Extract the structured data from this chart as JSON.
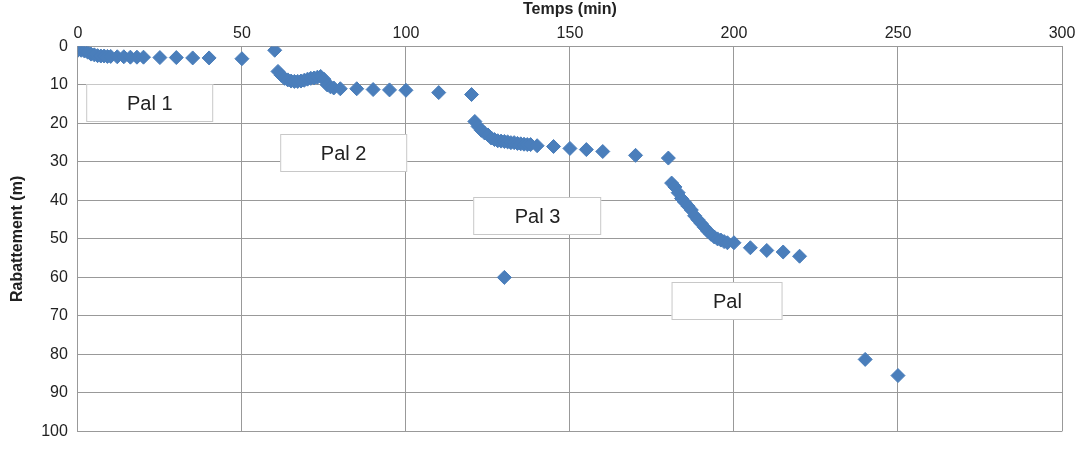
{
  "chart_data": {
    "type": "scatter",
    "xlabel": "Temps (min)",
    "ylabel": "Rabattement (m)",
    "marker": "diamond",
    "grid": true,
    "legend": false,
    "xlim": [
      0,
      300
    ],
    "xticks": [
      0,
      50,
      100,
      150,
      200,
      250,
      300
    ],
    "ylim": [
      100,
      0
    ],
    "yticks": [
      0,
      10,
      20,
      30,
      40,
      50,
      60,
      70,
      80,
      90,
      100
    ],
    "x": [
      0,
      1,
      2,
      3,
      4,
      5,
      6,
      7,
      8,
      9,
      10,
      12,
      14,
      16,
      18,
      20,
      25,
      30,
      35,
      40,
      50,
      60,
      61,
      62,
      63,
      64,
      65,
      66,
      67,
      68,
      69,
      70,
      71,
      72,
      73,
      74,
      75,
      76,
      77,
      78,
      80,
      85,
      90,
      95,
      100,
      110,
      120,
      121,
      122,
      123,
      124,
      125,
      126,
      127,
      128,
      129,
      130,
      131,
      132,
      133,
      134,
      135,
      136,
      137,
      138,
      140,
      145,
      150,
      155,
      160,
      170,
      180,
      130,
      181,
      182,
      183,
      184,
      185,
      186,
      187,
      188,
      189,
      190,
      191,
      192,
      193,
      194,
      195,
      196,
      197,
      198,
      200,
      205,
      210,
      215,
      220,
      240,
      250
    ],
    "series": [
      {
        "color": "#4a7ebb",
        "values": [
          1,
          1,
          1.2,
          1.5,
          2,
          2.2,
          2.4,
          2.5,
          2.5,
          2.6,
          2.6,
          2.7,
          2.7,
          2.8,
          2.8,
          2.8,
          2.9,
          2.9,
          3,
          3,
          3.2,
          1,
          6.5,
          7.5,
          8.3,
          8.7,
          9,
          9.1,
          9.1,
          9,
          8.8,
          8.5,
          8.3,
          8.2,
          8,
          7.8,
          8.5,
          10,
          10.5,
          10.8,
          11,
          11,
          11.2,
          11.3,
          11.4,
          12,
          12.5,
          19.5,
          20.8,
          21.8,
          22.5,
          23,
          23.8,
          24.2,
          24.5,
          24.6,
          24.7,
          24.8,
          25,
          25,
          25.2,
          25.3,
          25.4,
          25.5,
          25.5,
          25.8,
          26,
          26.5,
          26.8,
          27.3,
          28.3,
          29,
          60,
          35.5,
          36.5,
          38,
          39.5,
          40.5,
          41.5,
          42.5,
          44,
          45,
          46,
          47,
          48,
          48.8,
          49.5,
          50,
          50.3,
          50.7,
          51,
          51,
          52.3,
          53,
          53.4,
          54.5,
          81.3,
          85.5
        ]
      }
    ],
    "annotations": [
      "Pal 1",
      "Pal 2",
      "Pal 3",
      "Pal"
    ]
  }
}
